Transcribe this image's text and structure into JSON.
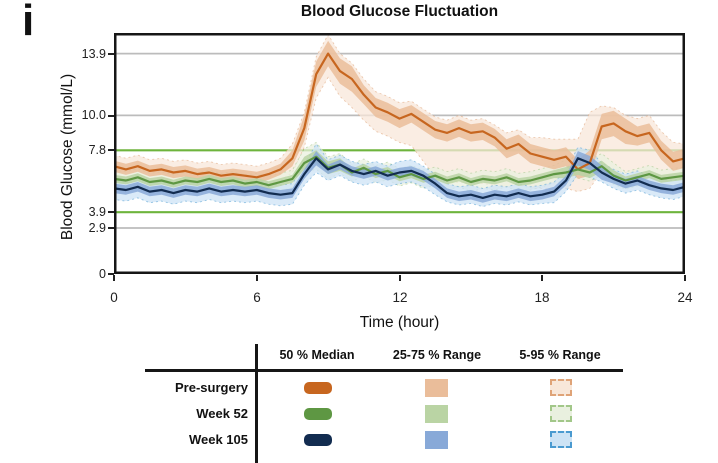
{
  "panel_label": "i",
  "chart_data": {
    "type": "line",
    "title": "Blood Glucose Fluctuation",
    "xlabel": "Time (hour)",
    "ylabel": "Blood Glucose (mmol/L)",
    "xlim": [
      0,
      24
    ],
    "ylim": [
      0,
      15.2
    ],
    "xticks": [
      0,
      6,
      12,
      18,
      24
    ],
    "yticks": [
      13.9,
      10.0,
      7.8,
      3.9,
      2.9,
      0
    ],
    "ytick_labels": [
      "13.9",
      "10.0",
      "7.8",
      "3.9",
      "2.9",
      "0"
    ],
    "gridlines_y": [
      13.9,
      10.0,
      2.9
    ],
    "target_lines_y": [
      7.8,
      3.9
    ],
    "grid_color": "#bcbcbc",
    "target_line_color": "#6eb43d",
    "legend_position": "bottom-table",
    "x_hours": [
      0,
      0.5,
      1,
      1.5,
      2,
      2.5,
      3,
      3.5,
      4,
      4.5,
      5,
      5.5,
      6,
      6.5,
      7,
      7.5,
      8,
      8.5,
      9,
      9.5,
      10,
      10.5,
      11,
      11.5,
      12,
      12.5,
      13,
      13.5,
      14,
      14.5,
      15,
      15.5,
      16,
      16.5,
      17,
      17.5,
      18,
      18.5,
      19,
      19.5,
      20,
      20.5,
      21,
      21.5,
      22,
      22.5,
      23,
      23.5,
      24
    ],
    "series": [
      {
        "name": "Pre-surgery",
        "median_color": "#c7661f",
        "iqr_color": "#eabd9a",
        "outer_fill": "#f8e7d9",
        "outer_border": "#dfa377",
        "median": [
          6.8,
          6.6,
          6.8,
          6.5,
          6.6,
          6.4,
          6.5,
          6.3,
          6.4,
          6.2,
          6.3,
          6.2,
          6.1,
          6.3,
          6.6,
          7.3,
          9.2,
          12.6,
          13.9,
          12.8,
          12.3,
          11.3,
          10.5,
          10.2,
          9.8,
          10.1,
          9.6,
          9.1,
          8.9,
          9.2,
          8.9,
          9.0,
          8.6,
          7.9,
          8.2,
          7.6,
          7.4,
          7.2,
          7.4,
          6.6,
          7.0,
          9.3,
          9.5,
          9.0,
          8.7,
          8.9,
          7.8,
          7.1,
          7.3
        ],
        "iqr_halfwidth": [
          0.35,
          0.35,
          0.35,
          0.35,
          0.35,
          0.35,
          0.35,
          0.35,
          0.35,
          0.35,
          0.35,
          0.35,
          0.35,
          0.35,
          0.35,
          0.5,
          0.8,
          0.8,
          0.8,
          0.8,
          0.8,
          0.6,
          0.6,
          0.6,
          0.6,
          0.55,
          0.55,
          0.55,
          0.55,
          0.55,
          0.55,
          0.55,
          0.55,
          0.6,
          0.6,
          0.6,
          0.6,
          0.6,
          0.6,
          0.6,
          0.8,
          0.8,
          0.8,
          0.8,
          0.6,
          0.6,
          0.6,
          0.6,
          0.6
        ],
        "p95_offset": [
          0.7,
          0.7,
          0.7,
          0.7,
          0.7,
          0.7,
          0.7,
          0.7,
          0.7,
          0.7,
          0.7,
          0.7,
          0.7,
          0.7,
          0.7,
          0.9,
          1.0,
          1.1,
          1.2,
          1.1,
          1.0,
          1.0,
          1.0,
          1.0,
          1.0,
          0.8,
          0.8,
          0.8,
          0.8,
          0.8,
          0.8,
          0.8,
          0.8,
          1.0,
          0.9,
          1.0,
          1.2,
          1.3,
          1.1,
          1.9,
          3.2,
          1.3,
          1.0,
          1.0,
          1.1,
          1.1,
          1.2,
          1.2,
          0.9
        ],
        "p05_offset": [
          0.7,
          0.7,
          0.7,
          0.7,
          0.7,
          0.7,
          0.7,
          0.7,
          0.7,
          0.7,
          0.7,
          0.7,
          0.7,
          0.7,
          0.7,
          0.9,
          1.2,
          1.5,
          1.5,
          1.6,
          1.8,
          1.6,
          1.5,
          1.5,
          1.5,
          2.0,
          2.5,
          3.0,
          3.2,
          3.4,
          3.2,
          3.3,
          3.0,
          2.4,
          2.6,
          2.2,
          2.0,
          1.8,
          2.0,
          1.4,
          1.6,
          2.8,
          2.9,
          2.6,
          2.3,
          2.5,
          1.6,
          1.0,
          0.9
        ]
      },
      {
        "name": "Week 52",
        "median_color": "#5e9743",
        "iqr_color": "#bad4a4",
        "outer_fill": "#e9f0df",
        "outer_border": "#a2c789",
        "median": [
          6.0,
          5.9,
          6.1,
          5.8,
          5.9,
          5.7,
          5.9,
          5.8,
          6.0,
          5.8,
          5.9,
          5.7,
          5.8,
          5.6,
          5.8,
          6.0,
          7.0,
          7.4,
          6.7,
          6.9,
          6.4,
          6.7,
          6.3,
          6.5,
          6.1,
          6.3,
          6.0,
          6.2,
          5.9,
          6.1,
          5.8,
          6.0,
          5.9,
          6.1,
          5.8,
          5.9,
          6.1,
          6.3,
          6.4,
          6.6,
          6.4,
          6.8,
          6.2,
          5.9,
          6.1,
          6.3,
          6.0,
          6.1,
          6.2
        ],
        "iqr_halfwidth": [
          0.25,
          0.25,
          0.25,
          0.25,
          0.25,
          0.25,
          0.25,
          0.25,
          0.25,
          0.25,
          0.25,
          0.25,
          0.25,
          0.25,
          0.25,
          0.25,
          0.4,
          0.4,
          0.4,
          0.4,
          0.25,
          0.25,
          0.25,
          0.25,
          0.25,
          0.25,
          0.25,
          0.25,
          0.25,
          0.25,
          0.25,
          0.25,
          0.25,
          0.25,
          0.25,
          0.25,
          0.25,
          0.25,
          0.35,
          0.35,
          0.35,
          0.35,
          0.35,
          0.25,
          0.25,
          0.25,
          0.25,
          0.25,
          0.25
        ],
        "p95_offset": [
          0.55,
          0.55,
          0.55,
          0.55,
          0.55,
          0.55,
          0.55,
          0.55,
          0.55,
          0.55,
          0.55,
          0.55,
          0.55,
          0.55,
          0.55,
          0.55,
          0.9,
          0.9,
          0.7,
          0.7,
          0.55,
          0.55,
          0.55,
          0.55,
          0.55,
          0.55,
          0.55,
          0.55,
          0.55,
          0.55,
          0.55,
          0.55,
          0.55,
          0.55,
          0.55,
          0.55,
          0.55,
          0.55,
          0.8,
          0.8,
          0.8,
          0.8,
          0.8,
          0.55,
          0.55,
          0.55,
          0.55,
          0.55,
          0.55
        ],
        "p05_offset": [
          0.55,
          0.55,
          0.55,
          0.55,
          0.55,
          0.55,
          0.55,
          0.55,
          0.55,
          0.55,
          0.55,
          0.55,
          0.55,
          0.55,
          0.55,
          0.55,
          0.55,
          0.8,
          0.7,
          0.55,
          0.55,
          0.55,
          0.55,
          0.55,
          0.55,
          0.55,
          0.6,
          0.6,
          0.6,
          0.6,
          0.6,
          0.6,
          0.6,
          0.6,
          0.6,
          0.6,
          0.6,
          0.55,
          0.55,
          0.55,
          0.55,
          0.55,
          0.55,
          0.55,
          0.55,
          0.55,
          0.55,
          0.55,
          0.55
        ]
      },
      {
        "name": "Week 105",
        "median_color": "#122c50",
        "iqr_color": "#88a9d8",
        "outer_fill": "#cde3f5",
        "outer_border": "#4a9ad0",
        "median": [
          5.4,
          5.3,
          5.5,
          5.2,
          5.3,
          5.1,
          5.3,
          5.2,
          5.4,
          5.2,
          5.3,
          5.2,
          5.3,
          5.1,
          5.0,
          5.1,
          6.3,
          7.3,
          6.6,
          6.9,
          6.5,
          6.3,
          6.5,
          6.2,
          6.4,
          6.5,
          6.2,
          5.7,
          5.1,
          4.9,
          5.0,
          4.8,
          5.0,
          4.9,
          5.1,
          4.9,
          5.0,
          5.2,
          5.9,
          7.3,
          7.0,
          6.4,
          6.0,
          5.7,
          5.9,
          5.6,
          5.4,
          5.3,
          5.5
        ],
        "iqr_halfwidth": [
          0.3,
          0.3,
          0.3,
          0.3,
          0.3,
          0.3,
          0.3,
          0.3,
          0.3,
          0.3,
          0.3,
          0.3,
          0.3,
          0.3,
          0.3,
          0.3,
          0.3,
          0.45,
          0.3,
          0.3,
          0.3,
          0.3,
          0.3,
          0.3,
          0.3,
          0.3,
          0.3,
          0.3,
          0.3,
          0.3,
          0.3,
          0.3,
          0.3,
          0.3,
          0.3,
          0.3,
          0.3,
          0.3,
          0.3,
          0.45,
          0.45,
          0.45,
          0.3,
          0.3,
          0.3,
          0.3,
          0.3,
          0.3,
          0.3
        ],
        "p95_offset": [
          0.6,
          0.6,
          0.6,
          0.6,
          0.6,
          0.6,
          0.6,
          0.6,
          0.6,
          0.6,
          0.6,
          0.6,
          0.6,
          0.6,
          0.6,
          0.6,
          0.6,
          0.9,
          0.6,
          0.6,
          0.6,
          0.6,
          0.6,
          0.6,
          0.7,
          0.7,
          0.6,
          0.6,
          0.6,
          0.6,
          0.6,
          0.6,
          0.6,
          0.6,
          0.6,
          0.6,
          0.6,
          0.6,
          0.6,
          0.7,
          0.8,
          0.6,
          0.6,
          0.6,
          0.6,
          0.6,
          0.6,
          0.6,
          0.6
        ],
        "p05_offset": [
          0.7,
          0.7,
          0.7,
          0.7,
          0.7,
          0.7,
          0.7,
          0.7,
          0.7,
          0.7,
          0.7,
          0.7,
          0.7,
          0.7,
          0.7,
          0.7,
          0.7,
          0.9,
          0.7,
          0.7,
          0.7,
          0.7,
          0.7,
          0.7,
          0.7,
          0.7,
          0.7,
          0.7,
          0.55,
          0.55,
          0.55,
          0.55,
          0.55,
          0.55,
          0.55,
          0.55,
          0.55,
          0.7,
          0.7,
          1.0,
          0.9,
          0.6,
          0.6,
          0.6,
          0.6,
          0.6,
          0.6,
          0.6,
          0.6
        ]
      }
    ]
  },
  "legend": {
    "columns": [
      "50 % Median",
      "25-75 % Range",
      "5-95 % Range"
    ],
    "rows": [
      {
        "label": "Pre-surgery",
        "median_color": "#c7661f",
        "iqr_color": "#eabd9a",
        "outer_fill": "#f8e7d9",
        "outer_border": "#dfa377"
      },
      {
        "label": "Week 52",
        "median_color": "#5e9743",
        "iqr_color": "#bad4a4",
        "outer_fill": "#e9f0df",
        "outer_border": "#a2c789"
      },
      {
        "label": "Week 105",
        "median_color": "#122c50",
        "iqr_color": "#88a9d8",
        "outer_fill": "#cde3f5",
        "outer_border": "#4a9ad0"
      }
    ]
  }
}
